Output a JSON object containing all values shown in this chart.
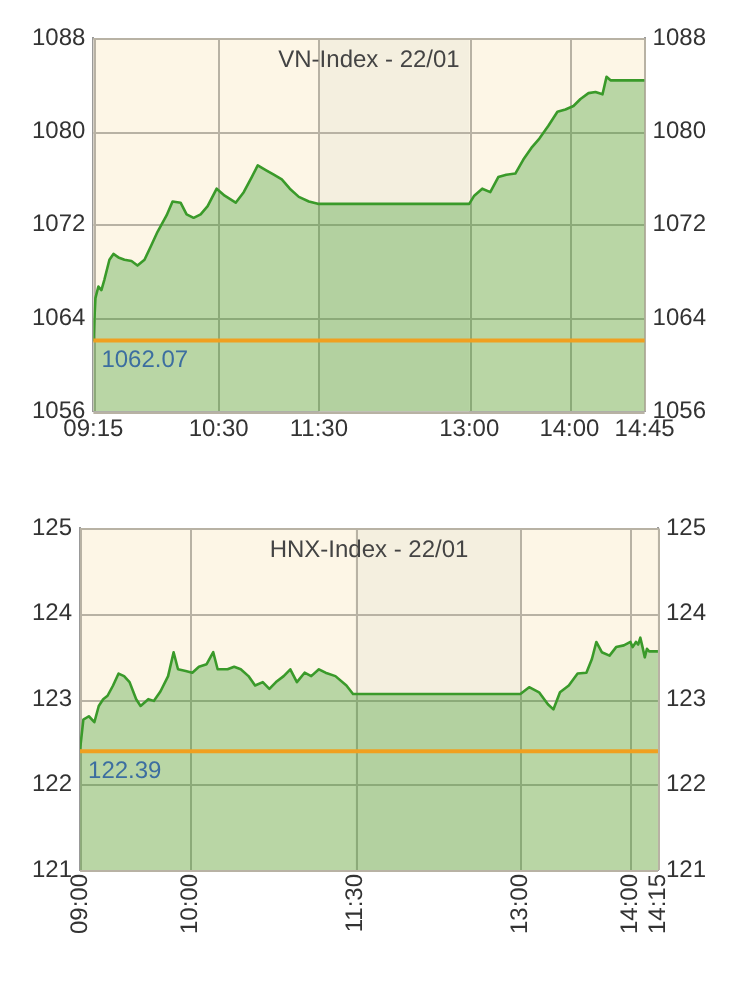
{
  "chart_data": [
    {
      "type": "area",
      "title": "VN-Index - 22/01",
      "x": [
        9.25,
        9.27,
        9.3,
        9.33,
        9.36,
        9.41,
        9.45,
        9.5,
        9.56,
        9.63,
        9.69,
        9.76,
        9.82,
        9.89,
        9.98,
        10.04,
        10.12,
        10.18,
        10.25,
        10.32,
        10.39,
        10.48,
        10.56,
        10.67,
        10.75,
        10.83,
        10.89,
        10.97,
        11.05,
        11.13,
        11.21,
        11.3,
        11.4,
        11.49,
        13.0,
        13.05,
        13.13,
        13.21,
        13.29,
        13.37,
        13.46,
        13.54,
        13.62,
        13.7,
        13.79,
        13.88,
        13.96,
        14.04,
        14.11,
        14.19,
        14.26,
        14.33,
        14.37,
        14.41,
        14.75
      ],
      "series": [
        {
          "color": "#3a9a2a",
          "values": [
            1062.0,
            1065.7,
            1066.7,
            1066.4,
            1067.3,
            1069.0,
            1069.5,
            1069.2,
            1069.0,
            1068.9,
            1068.5,
            1069.0,
            1070.1,
            1071.4,
            1072.8,
            1074.0,
            1073.9,
            1072.9,
            1072.6,
            1072.9,
            1073.6,
            1075.1,
            1074.5,
            1073.9,
            1074.8,
            1076.1,
            1077.1,
            1076.7,
            1076.3,
            1075.9,
            1075.1,
            1074.4,
            1074.0,
            1073.8,
            1073.8,
            1074.5,
            1075.1,
            1074.8,
            1076.1,
            1076.3,
            1076.4,
            1077.6,
            1078.6,
            1079.4,
            1080.5,
            1081.7,
            1081.9,
            1082.2,
            1082.8,
            1083.3,
            1083.4,
            1083.2,
            1084.7,
            1084.4,
            1084.4
          ]
        }
      ],
      "xlim": [
        9.25,
        14.75
      ],
      "xticks": [
        {
          "value": 9.25,
          "label": "09:15"
        },
        {
          "value": 10.5,
          "label": "10:30"
        },
        {
          "value": 11.5,
          "label": "11:30"
        },
        {
          "value": 13,
          "label": "13:00"
        },
        {
          "value": 14,
          "label": "14:00"
        },
        {
          "value": 14.75,
          "label": "14:45"
        }
      ],
      "ylim": [
        1056,
        1088
      ],
      "yticks": [
        1056,
        1064,
        1072,
        1080,
        1088
      ],
      "y2lim": [
        1056,
        1088
      ],
      "y2ticks": [
        1056,
        1064,
        1072,
        1080,
        1088
      ],
      "grid": true,
      "ref_lines": [
        {
          "axis": "y",
          "value": 1062.07,
          "label": "1062.07",
          "color": "#f0a020"
        }
      ],
      "bands": [
        {
          "axis": "x",
          "from": 11.5,
          "to": 13,
          "color": "#f4efdf"
        }
      ]
    },
    {
      "type": "area",
      "title": "HNX-Index - 22/01",
      "x": [
        9.0,
        9.03,
        9.08,
        9.13,
        9.17,
        9.21,
        9.25,
        9.3,
        9.35,
        9.4,
        9.45,
        9.51,
        9.55,
        9.62,
        9.67,
        9.73,
        9.8,
        9.85,
        9.89,
        9.96,
        10.02,
        10.08,
        10.15,
        10.21,
        10.25,
        10.34,
        10.4,
        10.46,
        10.53,
        10.59,
        10.66,
        10.72,
        10.78,
        10.85,
        10.91,
        10.97,
        11.04,
        11.1,
        11.17,
        11.23,
        11.32,
        11.42,
        11.48,
        13.0,
        13.08,
        13.17,
        13.25,
        13.3,
        13.36,
        13.44,
        13.52,
        13.6,
        13.65,
        13.69,
        13.74,
        13.81,
        13.87,
        13.94,
        14.0,
        14.02,
        14.05,
        14.07,
        14.09,
        14.11,
        14.13,
        14.15,
        14.17,
        14.25
      ],
      "series": [
        {
          "color": "#3a9a2a",
          "values": [
            122.41,
            122.76,
            122.8,
            122.73,
            122.92,
            123.0,
            123.04,
            123.16,
            123.3,
            123.27,
            123.2,
            123.0,
            122.92,
            123.0,
            122.98,
            123.09,
            123.27,
            123.55,
            123.35,
            123.33,
            123.31,
            123.38,
            123.41,
            123.55,
            123.35,
            123.35,
            123.38,
            123.35,
            123.27,
            123.16,
            123.2,
            123.12,
            123.2,
            123.27,
            123.35,
            123.2,
            123.31,
            123.27,
            123.35,
            123.31,
            123.27,
            123.16,
            123.06,
            123.06,
            123.14,
            123.08,
            122.94,
            122.88,
            123.08,
            123.16,
            123.3,
            123.31,
            123.47,
            123.67,
            123.55,
            123.51,
            123.61,
            123.63,
            123.67,
            123.61,
            123.67,
            123.64,
            123.72,
            123.61,
            123.49,
            123.59,
            123.56,
            123.56
          ]
        }
      ],
      "xlim": [
        9.0,
        14.25
      ],
      "xticks": [
        {
          "value": 9.0,
          "label": "09:00"
        },
        {
          "value": 10.0,
          "label": "10:00"
        },
        {
          "value": 11.5,
          "label": "11:30"
        },
        {
          "value": 13,
          "label": "13:00"
        },
        {
          "value": 14,
          "label": "14:00"
        },
        {
          "value": 14.25,
          "label": "14:15"
        }
      ],
      "ylim": [
        121,
        125
      ],
      "yticks": [
        121,
        122,
        123,
        124,
        125
      ],
      "y2lim": [
        121,
        125
      ],
      "y2ticks": [
        121,
        122,
        123,
        124,
        125
      ],
      "grid": true,
      "ref_lines": [
        {
          "axis": "y",
          "value": 122.39,
          "label": "122.39",
          "color": "#f0a020"
        }
      ],
      "bands": [
        {
          "axis": "x",
          "from": 11.5,
          "to": 13,
          "color": "#f4efdf"
        }
      ]
    }
  ]
}
